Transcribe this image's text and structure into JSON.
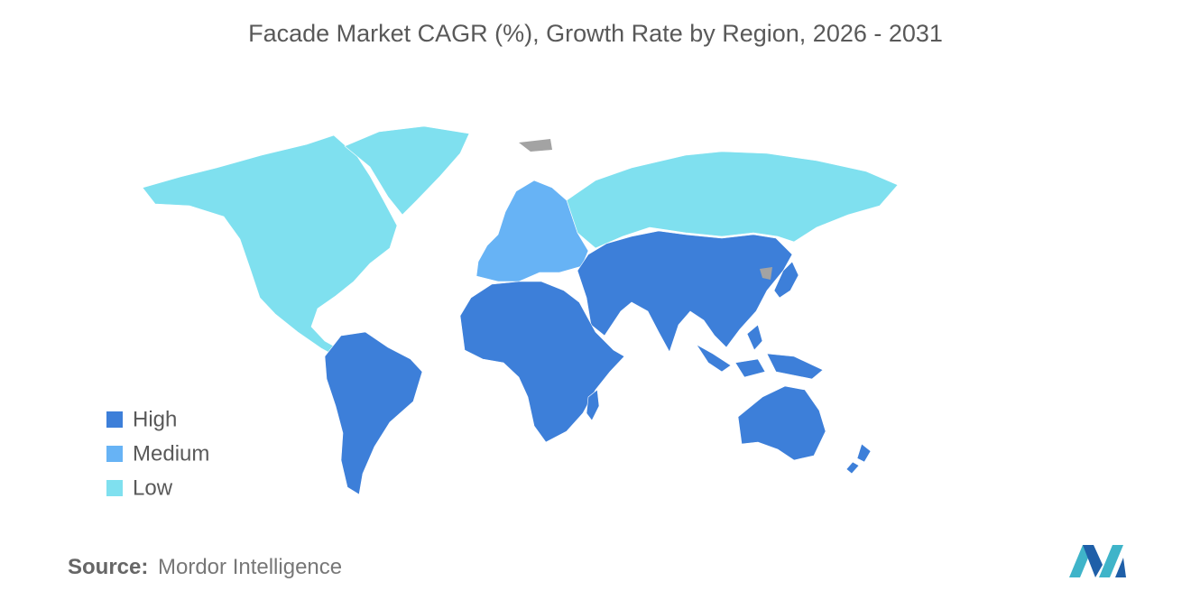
{
  "title": "Facade Market CAGR (%), Growth Rate by Region, 2026 - 2031",
  "legend": [
    {
      "label": "High",
      "color": "#3d7fd9"
    },
    {
      "label": "Medium",
      "color": "#67b3f5"
    },
    {
      "label": "Low",
      "color": "#7fe0ef"
    }
  ],
  "source": {
    "label": "Source:",
    "text": "Mordor Intelligence"
  }
}
